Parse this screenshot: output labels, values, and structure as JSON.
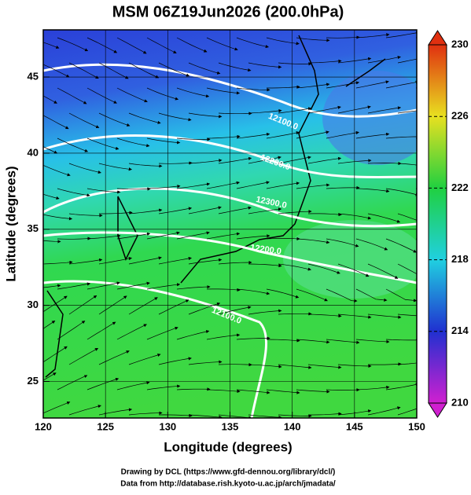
{
  "chart_data": {
    "type": "map",
    "title": "MSM 06Z19Jun2026 (200.0hPa)",
    "x_label": "Longitude (degrees)",
    "y_label": "Latitude  (degrees)",
    "xlim": [
      120,
      150
    ],
    "xticks": [
      120,
      125,
      130,
      135,
      140,
      145,
      150
    ],
    "ylim": [
      22.6,
      48.1
    ],
    "yticks": [
      25,
      30,
      35,
      40,
      45
    ],
    "colorbar": {
      "lim": [
        210,
        230
      ],
      "ticks": [
        210,
        214,
        218,
        222,
        226,
        230
      ],
      "colors": [
        "#d020d0",
        "#2030d0",
        "#20d0e0",
        "#20d040",
        "#e8e020",
        "#e03010"
      ]
    },
    "contour_labels": [
      "12100.0",
      "12200.0",
      "12300.0",
      "12200.0",
      "12100.0"
    ],
    "credits": [
      "Drawing by DCL (https://www.gfd-dennou.org/library/dcl/)",
      "Data from http://database.rish.kyoto-u.ac.jp/arch/jmadata/"
    ]
  }
}
